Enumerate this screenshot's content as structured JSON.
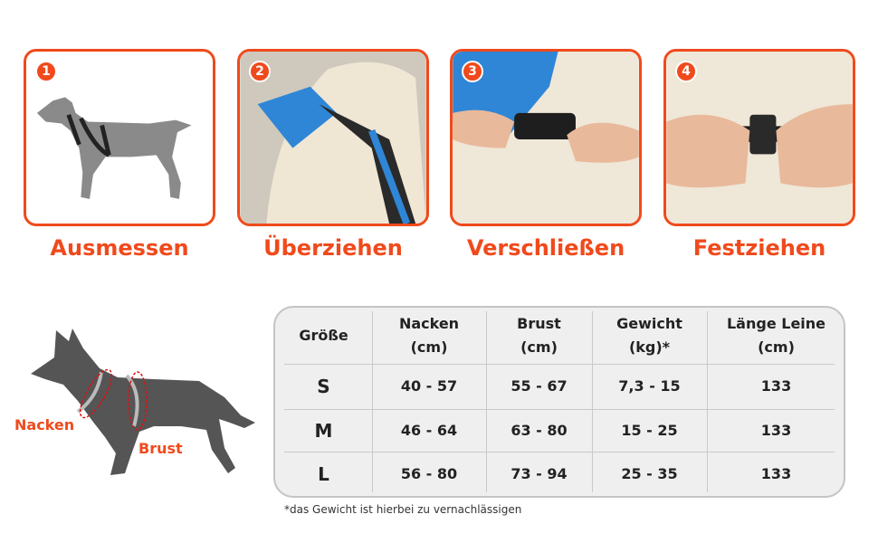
{
  "steps": [
    {
      "number": "1",
      "label": "Ausmessen"
    },
    {
      "number": "2",
      "label": "Überziehen"
    },
    {
      "number": "3",
      "label": "Verschließen"
    },
    {
      "number": "4",
      "label": "Festziehen"
    }
  ],
  "diagram": {
    "neck_label": "Nacken",
    "chest_label": "Brust"
  },
  "size_table": {
    "headers": [
      "Größe",
      "Nacken\n(cm)",
      "Brust\n(cm)",
      "Gewicht\n(kg)*",
      "Länge Leine\n(cm)"
    ],
    "rows": [
      [
        "S",
        "40 - 57",
        "55 - 67",
        "7,3 - 15",
        "133"
      ],
      [
        "M",
        "46 - 64",
        "63 - 80",
        "15 - 25",
        "133"
      ],
      [
        "L",
        "56 - 80",
        "73 - 94",
        "25 - 35",
        "133"
      ]
    ]
  },
  "footnote": "*das Gewicht ist hierbei zu vernachlässigen",
  "colors": {
    "accent": "#f04a1c",
    "harness_blue": "#2f86d6",
    "dog_gray": "#555555"
  }
}
